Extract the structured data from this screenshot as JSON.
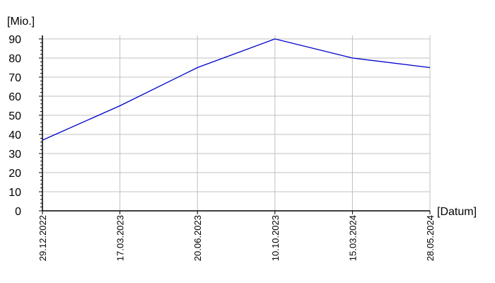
{
  "chart_data": {
    "type": "line",
    "y_label": "[Mio.]",
    "x_label": "[Datum]",
    "categories": [
      "29.12.2022",
      "17.03.2023",
      "20.06.2023",
      "10.10.2023",
      "15.03.2024",
      "28.05.2024"
    ],
    "series": [
      {
        "name": null,
        "color": "#0000cc",
        "values": [
          37,
          55,
          75,
          90,
          80,
          75
        ]
      }
    ],
    "ylim": [
      0,
      90
    ],
    "yticks": [
      0,
      10,
      20,
      30,
      40,
      50,
      60,
      70,
      80,
      90
    ],
    "grid": true
  }
}
